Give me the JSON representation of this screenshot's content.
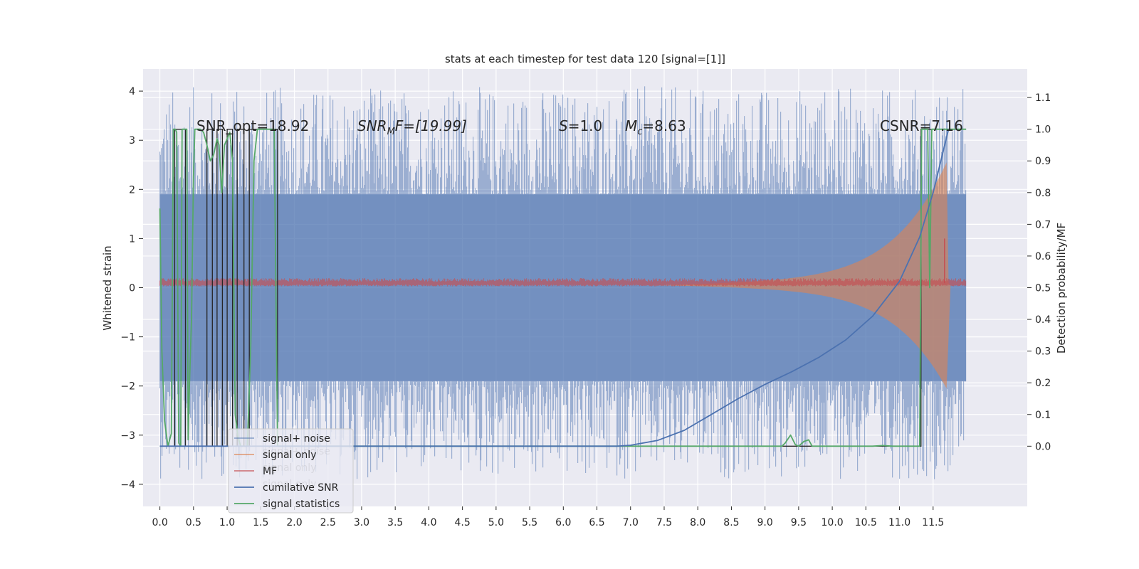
{
  "colors": {
    "background": "#eaeaf2",
    "grid": "#ffffff",
    "signal_noise": "#4c72b0",
    "signal_only": "#dd8452",
    "mf": "#c44e52",
    "cumulative_snr": "#4c72b0",
    "signal_statistics": "#55a868",
    "prediction_steps": "#262626"
  },
  "chart_data": {
    "type": "line",
    "title": "stats at each timestep for test data 120 [signal=[1]]",
    "xlabel": "",
    "ylabel": "Whitened strain",
    "y2label": "Detection probability/MF",
    "xlim": [
      -0.25,
      12.9
    ],
    "ylim": [
      -4.45,
      4.45
    ],
    "y2lim": [
      -0.19,
      1.19
    ],
    "x_ticks": [
      0.0,
      0.5,
      1.0,
      1.5,
      2.0,
      2.5,
      3.0,
      3.5,
      4.0,
      4.5,
      5.0,
      5.5,
      6.0,
      6.5,
      7.0,
      7.5,
      8.0,
      8.5,
      9.0,
      9.5,
      10.0,
      10.5,
      11.0,
      11.5
    ],
    "x_tick_labels": [
      "0.0",
      "0.5",
      "1.0",
      "1.5",
      "2.0",
      "2.5",
      "3.0",
      "3.5",
      "4.0",
      "4.5",
      "5.0",
      "5.5",
      "6.0",
      "6.5",
      "7.0",
      "7.5",
      "8.0",
      "8.5",
      "9.0",
      "9.5",
      "10.0",
      "10.5",
      "11.0",
      "11.5"
    ],
    "y_ticks": [
      4,
      3,
      2,
      1,
      0,
      -1,
      -2,
      -3,
      -4
    ],
    "y_tick_labels": [
      "4",
      "3",
      "2",
      "1",
      "0",
      "−1",
      "−2",
      "−3",
      "−4"
    ],
    "y2_ticks": [
      1.1,
      1.0,
      0.9,
      0.8,
      0.7,
      0.6,
      0.5,
      0.4,
      0.3,
      0.2,
      0.1,
      0.0
    ],
    "y2_tick_labels": [
      "1.1",
      "1.0",
      "0.9",
      "0.8",
      "0.7",
      "0.6",
      "0.5",
      "0.4",
      "0.3",
      "0.2",
      "0.1",
      "0.0"
    ],
    "grid": true,
    "legend_position": "lower-left",
    "legend": [
      {
        "label": "signal+ noise",
        "color": "#4c72b0",
        "opacity": 0.55
      },
      {
        "label": "signal only",
        "color": "#dd8452",
        "opacity": 0.7
      },
      {
        "label": "MF",
        "color": "#c44e52",
        "opacity": 0.7
      },
      {
        "label": "cumilative SNR",
        "color": "#4c72b0",
        "opacity": 1
      },
      {
        "label": "signal statistics",
        "color": "#55a868",
        "opacity": 1
      }
    ],
    "legend_ghost_labels": [
      "signal+ noise",
      "signal only",
      "signal only"
    ],
    "annotations": {
      "snr_opt": "SNR_opt=18.92",
      "snr_mf_name": "SNR",
      "snr_mf_sub": "M",
      "snr_mf_rest": "F=[19.99]",
      "s_name": "S",
      "s_rest": "=1.0",
      "mc_name": "M",
      "mc_sub": "c",
      "mc_rest": "=8.63",
      "csnr": "CSNR=7.16"
    },
    "series": [
      {
        "kind": "noise_band",
        "x_range": [
          0.0,
          11.99
        ],
        "core_level": 1.9,
        "spike_max": 4.1,
        "spike_min": -3.9
      },
      {
        "kind": "chirp_envelope",
        "x_range": [
          7.2,
          11.7
        ],
        "peak_upper": 2.5,
        "peak_lower": -2.1
      },
      {
        "kind": "mf_band",
        "x_range": [
          0.0,
          11.99
        ],
        "center": 0.09,
        "half_width": 0.07,
        "spike_x": 11.67,
        "spike_y": 1.0
      },
      {
        "kind": "cumulative_snr",
        "axis": "right",
        "points": [
          [
            0.0,
            0.0
          ],
          [
            6.8,
            0.0
          ],
          [
            7.0,
            0.003
          ],
          [
            7.4,
            0.018
          ],
          [
            7.8,
            0.05
          ],
          [
            8.2,
            0.1
          ],
          [
            8.6,
            0.15
          ],
          [
            9.0,
            0.195
          ],
          [
            9.4,
            0.235
          ],
          [
            9.8,
            0.28
          ],
          [
            10.2,
            0.335
          ],
          [
            10.6,
            0.41
          ],
          [
            11.0,
            0.52
          ],
          [
            11.3,
            0.66
          ],
          [
            11.5,
            0.8
          ],
          [
            11.65,
            0.93
          ],
          [
            11.73,
            1.0
          ]
        ]
      },
      {
        "kind": "signal_statistics",
        "axis": "right",
        "points": [
          [
            0.0,
            0.75
          ],
          [
            0.03,
            0.3
          ],
          [
            0.07,
            0.08
          ],
          [
            0.12,
            0.0
          ],
          [
            0.17,
            0.04
          ],
          [
            0.2,
            1.0
          ],
          [
            0.23,
            1.0
          ],
          [
            0.25,
            0.99
          ],
          [
            0.28,
            0.01
          ],
          [
            0.31,
            0.0
          ],
          [
            0.33,
            1.0
          ],
          [
            0.4,
            1.0
          ],
          [
            0.42,
            0.02
          ],
          [
            0.44,
            0.2
          ],
          [
            0.47,
            0.4
          ],
          [
            0.5,
            0.85
          ],
          [
            0.52,
            1.0
          ],
          [
            0.6,
            1.0
          ],
          [
            0.65,
            0.99
          ],
          [
            0.7,
            0.95
          ],
          [
            0.75,
            0.9
          ],
          [
            0.8,
            0.92
          ],
          [
            0.85,
            0.97
          ],
          [
            0.88,
            0.95
          ],
          [
            0.92,
            0.8
          ],
          [
            0.96,
            0.95
          ],
          [
            1.0,
            0.97
          ],
          [
            1.04,
            0.99
          ],
          [
            1.08,
            0.9
          ],
          [
            1.12,
            0.1
          ],
          [
            1.16,
            0.03
          ],
          [
            1.2,
            0.0
          ],
          [
            1.3,
            0.0
          ],
          [
            1.35,
            0.3
          ],
          [
            1.4,
            0.9
          ],
          [
            1.45,
            1.0
          ],
          [
            1.7,
            1.0
          ],
          [
            1.75,
            0.0
          ],
          [
            9.25,
            0.0
          ],
          [
            9.3,
            0.01
          ],
          [
            9.38,
            0.035
          ],
          [
            9.45,
            0.005
          ],
          [
            9.5,
            0.0
          ],
          [
            9.58,
            0.015
          ],
          [
            9.65,
            0.02
          ],
          [
            9.7,
            0.0
          ],
          [
            10.6,
            0.0
          ],
          [
            10.75,
            0.002
          ],
          [
            10.9,
            0.0
          ],
          [
            11.3,
            0.0
          ],
          [
            11.33,
            1.0
          ],
          [
            11.42,
            1.0
          ],
          [
            11.45,
            0.5
          ],
          [
            11.48,
            1.0
          ],
          [
            11.99,
            1.0
          ]
        ]
      },
      {
        "kind": "prediction_steps",
        "axis": "right",
        "points": [
          [
            0.0,
            0.0
          ],
          [
            0.22,
            0.0
          ],
          [
            0.22,
            1.0
          ],
          [
            0.38,
            1.0
          ],
          [
            0.38,
            0.0
          ],
          [
            0.7,
            0.0
          ],
          [
            0.7,
            1.0
          ],
          [
            0.78,
            1.0
          ],
          [
            0.78,
            0.0
          ],
          [
            0.85,
            0.0
          ],
          [
            0.85,
            1.0
          ],
          [
            0.93,
            1.0
          ],
          [
            0.93,
            0.0
          ],
          [
            1.0,
            0.0
          ],
          [
            1.0,
            1.0
          ],
          [
            1.08,
            1.0
          ],
          [
            1.08,
            0.0
          ],
          [
            1.15,
            0.0
          ],
          [
            1.15,
            1.0
          ],
          [
            1.25,
            1.0
          ],
          [
            1.25,
            0.0
          ],
          [
            1.33,
            0.0
          ],
          [
            1.33,
            1.0
          ],
          [
            1.75,
            1.0
          ],
          [
            1.75,
            0.0
          ],
          [
            11.32,
            0.0
          ],
          [
            11.32,
            1.0
          ],
          [
            11.99,
            1.0
          ]
        ]
      }
    ]
  }
}
